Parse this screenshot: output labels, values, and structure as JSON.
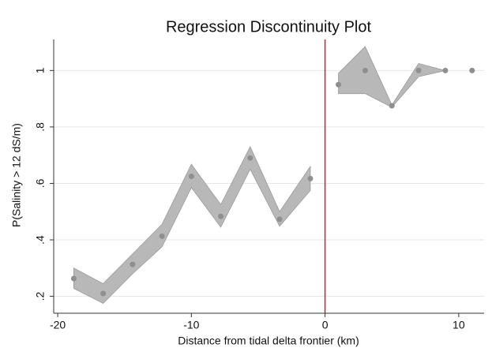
{
  "chart_data": {
    "type": "scatter",
    "title": "Regression Discontinuity Plot",
    "xlabel": "Distance from tidal delta frontier (km)",
    "ylabel": "P(Salinity > 12 dS/m)",
    "xlim": [
      -20.3,
      11.9
    ],
    "ylim": [
      0.14,
      1.11
    ],
    "xticks": [
      -20,
      -10,
      0,
      10
    ],
    "yticks": [
      {
        "value": 0.2,
        "label": ".2"
      },
      {
        "value": 0.4,
        "label": ".4"
      },
      {
        "value": 0.6,
        "label": ".6"
      },
      {
        "value": 0.8,
        "label": ".8"
      },
      1
    ],
    "grid": true,
    "cutoff": 0,
    "cutoff_color": "#b5283a",
    "series": [
      {
        "color": "#8f8f8f",
        "x": [
          -18.8,
          -16.6,
          -14.4,
          -12.2,
          -10,
          -7.8,
          -5.6,
          -3.4,
          -1.1
        ],
        "values": [
          0.263,
          0.21,
          0.313,
          0.413,
          0.625,
          0.483,
          0.69,
          0.473,
          0.617
        ]
      },
      {
        "color": "#8f8f8f",
        "x": [
          1,
          3,
          5,
          7,
          9,
          11
        ],
        "values": [
          0.95,
          1.0,
          0.875,
          1.0,
          1.0,
          1.0
        ]
      }
    ],
    "bands": [
      {
        "color": "#b8b8b8",
        "x": [
          -18.8,
          -16.6,
          -14.4,
          -12.2,
          -10,
          -7.8,
          -5.6,
          -3.4,
          -1.1
        ],
        "upper": [
          0.3,
          0.245,
          0.35,
          0.455,
          0.668,
          0.525,
          0.73,
          0.5,
          0.66
        ],
        "lower": [
          0.228,
          0.175,
          0.28,
          0.375,
          0.585,
          0.445,
          0.65,
          0.448,
          0.575
        ]
      },
      {
        "color": "#b8b8b8",
        "x": [
          1,
          3,
          5,
          7,
          9
        ],
        "upper": [
          0.99,
          1.085,
          0.878,
          1.025,
          1.0
        ],
        "lower": [
          0.918,
          0.918,
          0.87,
          0.978,
          1.0
        ]
      }
    ]
  }
}
